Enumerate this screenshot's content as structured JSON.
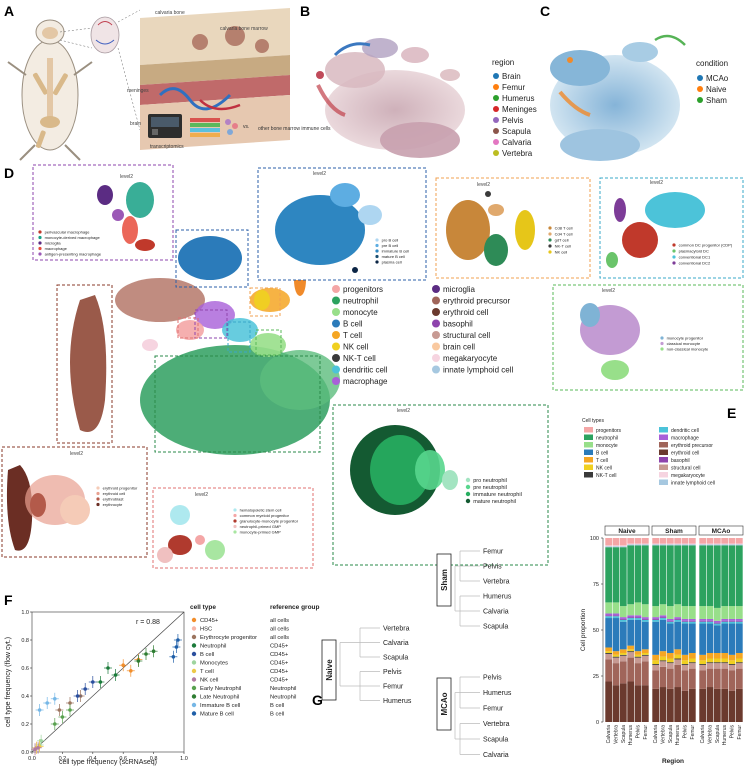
{
  "panels": {
    "A": {
      "letter": "A",
      "labels": {
        "calvaria_bone": "calvaria bone",
        "meninges": "meninges",
        "brain": "brain",
        "skull_marrow": "calvaria bone marrow",
        "transcriptomics": "transcriptomics",
        "vs": "vs.",
        "other": "other bone marrow immune cells"
      }
    },
    "B": {
      "letter": "B",
      "legend_title": "region",
      "legend": [
        {
          "name": "Brain",
          "color": "#1f77b4"
        },
        {
          "name": "Femur",
          "color": "#ff7f0e"
        },
        {
          "name": "Humerus",
          "color": "#2ca02c"
        },
        {
          "name": "Meninges",
          "color": "#d62728"
        },
        {
          "name": "Pelvis",
          "color": "#9467bd"
        },
        {
          "name": "Scapula",
          "color": "#8c564b"
        },
        {
          "name": "Calvaria",
          "color": "#e377c2"
        },
        {
          "name": "Vertebra",
          "color": "#bcbd22"
        }
      ]
    },
    "C": {
      "letter": "C",
      "legend_title": "condition",
      "legend": [
        {
          "name": "MCAo",
          "color": "#1f77b4"
        },
        {
          "name": "Naive",
          "color": "#ff7f0e"
        },
        {
          "name": "Sham",
          "color": "#2ca02c"
        }
      ]
    },
    "D": {
      "letter": "D",
      "main_legend_col1": [
        {
          "name": "progenitors",
          "color": "#f4a6a6"
        },
        {
          "name": "neutrophil",
          "color": "#2ca25f"
        },
        {
          "name": "monocyte",
          "color": "#98df8a"
        },
        {
          "name": "B cell",
          "color": "#2b7bba"
        },
        {
          "name": "T cell",
          "color": "#f5a623"
        },
        {
          "name": "NK cell",
          "color": "#f0d020"
        },
        {
          "name": "NK-T cell",
          "color": "#3a3a3a"
        },
        {
          "name": "dendritic cell",
          "color": "#4cc3d9"
        },
        {
          "name": "macrophage",
          "color": "#a85fd8"
        }
      ],
      "main_legend_col2": [
        {
          "name": "microglia",
          "color": "#5b2c83"
        },
        {
          "name": "erythroid precursor",
          "color": "#a0655a"
        },
        {
          "name": "erythroid cell",
          "color": "#6b3a2e"
        },
        {
          "name": "basophil",
          "color": "#8e44ad"
        },
        {
          "name": "structural cell",
          "color": "#c79a93"
        },
        {
          "name": "brain cell",
          "color": "#f9c9a0"
        },
        {
          "name": "megakaryocyte",
          "color": "#f6d4e0"
        },
        {
          "name": "innate lymphoid cell",
          "color": "#a6c8e0"
        }
      ],
      "insets": {
        "macrophage": {
          "title": "level2",
          "items": [
            {
              "name": "perivascular macrophage",
              "color": "#c0392b"
            },
            {
              "name": "monocyte-derived macrophage",
              "color": "#16a085"
            },
            {
              "name": "microglia",
              "color": "#5b2c83"
            },
            {
              "name": "macrophage",
              "color": "#e74c3c"
            },
            {
              "name": "antigen-presenting macrophage",
              "color": "#9b59b6"
            }
          ]
        },
        "bcell": {
          "title": "level2",
          "items": [
            {
              "name": "pro B cell",
              "color": "#aed6f1"
            },
            {
              "name": "pre B cell",
              "color": "#5dade2"
            },
            {
              "name": "immature B cell",
              "color": "#2e86c1"
            },
            {
              "name": "mature B cell",
              "color": "#1b4f72"
            },
            {
              "name": "plasma cell",
              "color": "#0b2545"
            }
          ]
        },
        "tcell": {
          "title": "level2",
          "items": [
            {
              "name": "Cd8 T cell",
              "color": "#c8873a"
            },
            {
              "name": "Cd4 T cell",
              "color": "#e0a96d"
            },
            {
              "name": "gdT cell",
              "color": "#2e8b57"
            },
            {
              "name": "NK-T cell",
              "color": "#3a3a3a"
            },
            {
              "name": "NK cell",
              "color": "#e6c619"
            }
          ]
        },
        "dc": {
          "title": "level2",
          "items": [
            {
              "name": "common DC progenitor (CDP)",
              "color": "#c0392b"
            },
            {
              "name": "plasmacytoid DC",
              "color": "#6ac46a"
            },
            {
              "name": "conventional DC1",
              "color": "#4cc3d9"
            },
            {
              "name": "conventional DC2",
              "color": "#7d3c98"
            }
          ]
        },
        "mono": {
          "title": "level2",
          "items": [
            {
              "name": "monocyte progenitor",
              "color": "#7fb3d5"
            },
            {
              "name": "classical monocyte",
              "color": "#c39bd3"
            },
            {
              "name": "non-classical monocyte",
              "color": "#98df8a"
            }
          ]
        },
        "ery": {
          "title": "level2",
          "items": [
            {
              "name": "erythroid progenitor",
              "color": "#f5cbb7"
            },
            {
              "name": "erythroid cell",
              "color": "#e8a090"
            },
            {
              "name": "erythroblast",
              "color": "#b35a4a"
            },
            {
              "name": "erythrocyte",
              "color": "#6b2e24"
            }
          ]
        },
        "prog": {
          "title": "level2",
          "items": [
            {
              "name": "hematopoietic stem cell",
              "color": "#aee9ef"
            },
            {
              "name": "common myeloid progenitor",
              "color": "#f4a6a6"
            },
            {
              "name": "granulocyte-monocyte progenitor",
              "color": "#b03a2e"
            },
            {
              "name": "neutrophil-primed GMP",
              "color": "#f0c0c0"
            },
            {
              "name": "monocyte-primed GMP",
              "color": "#a8e6a1"
            }
          ]
        },
        "neut": {
          "title": "level2",
          "items": [
            {
              "name": "pro neutrophil",
              "color": "#a3e4c1"
            },
            {
              "name": "pre neutrophil",
              "color": "#58d68d"
            },
            {
              "name": "immature neutrophil",
              "color": "#27ae60"
            },
            {
              "name": "mature neutrophil",
              "color": "#145a32"
            }
          ]
        }
      }
    },
    "E": {
      "letter": "E",
      "legend_title": "Cell types",
      "legend_col1": [
        {
          "name": "progenitors",
          "color": "#f4a6a6"
        },
        {
          "name": "neutrophil",
          "color": "#2ca25f"
        },
        {
          "name": "monocyte",
          "color": "#98df8a"
        },
        {
          "name": "B cell",
          "color": "#2b7bba"
        },
        {
          "name": "T cell",
          "color": "#f5a623"
        },
        {
          "name": "NK cell",
          "color": "#f0d020"
        },
        {
          "name": "NK-T cell",
          "color": "#3a3a3a"
        }
      ],
      "legend_col2": [
        {
          "name": "dendritic cell",
          "color": "#4cc3d9"
        },
        {
          "name": "macrophage",
          "color": "#a85fd8"
        },
        {
          "name": "erythroid precursor",
          "color": "#a0655a"
        },
        {
          "name": "erythroid cell",
          "color": "#6b3a2e"
        },
        {
          "name": "basophil",
          "color": "#8e44ad"
        },
        {
          "name": "structural cell",
          "color": "#c79a93"
        },
        {
          "name": "megakaryocyte",
          "color": "#f6d4e0"
        },
        {
          "name": "innate lymphoid cell",
          "color": "#a6c8e0"
        }
      ]
    },
    "F": {
      "letter": "F"
    },
    "G": {
      "letter": "G",
      "naive": {
        "label": "Naive",
        "leaves": [
          "Vertebra",
          "Calvaria",
          "Scapula",
          "Pelvis",
          "Femur",
          "Humerus"
        ]
      },
      "sham": {
        "label": "Sham",
        "leaves": [
          "Femur",
          "Pelvis",
          "Vertebra",
          "Humerus",
          "Calvaria",
          "Scapula"
        ]
      },
      "mcao": {
        "label": "MCAo",
        "leaves": [
          "Pelvis",
          "Humerus",
          "Femur",
          "Vertebra",
          "Scapula",
          "Calvaria"
        ]
      }
    }
  },
  "chart_data": [
    {
      "type": "bar",
      "id": "E",
      "stacked": true,
      "facets": [
        "Naive",
        "Sham",
        "MCAo"
      ],
      "categories": [
        "Calvaria",
        "Vertebra",
        "Scapula",
        "Humerus",
        "Pelvis",
        "Femur"
      ],
      "xlabel": "Region",
      "ylabel": "Cell proportion",
      "ylim": [
        0,
        100
      ],
      "yticks": [
        0,
        25,
        50,
        75,
        100
      ],
      "stack_order": [
        "erythroid cell",
        "erythroid precursor",
        "structural cell",
        "NK-T cell",
        "NK cell",
        "T cell",
        "B cell",
        "dendritic cell",
        "basophil",
        "macrophage",
        "monocyte",
        "neutrophil",
        "innate lymphoid cell",
        "megakaryocyte",
        "progenitors"
      ],
      "series": {
        "Naive": [
          [
            22,
            12,
            3,
            0.5,
            1,
            2,
            16,
            1,
            0.5,
            1,
            6,
            30,
            0.5,
            0.5,
            4
          ],
          [
            20,
            12,
            3,
            0.5,
            1,
            2,
            18,
            1,
            0.5,
            1,
            6,
            30,
            0.5,
            0.5,
            4
          ],
          [
            21,
            12,
            3,
            0.5,
            1,
            2,
            15,
            1,
            0.5,
            1,
            6,
            32,
            0.5,
            0.5,
            4
          ],
          [
            22,
            13,
            3,
            0.5,
            1,
            2,
            14,
            1,
            0.5,
            1,
            6,
            32,
            0.5,
            0.5,
            3
          ],
          [
            20,
            12,
            3,
            0.5,
            1,
            2,
            17,
            1,
            0.5,
            1,
            7,
            31,
            0.5,
            0.5,
            3
          ],
          [
            20,
            13,
            3,
            0.5,
            1,
            2,
            15,
            1,
            0.5,
            1,
            7,
            32,
            0.5,
            0.5,
            3
          ]
        ],
        "Sham": [
          [
            18,
            10,
            3,
            0.5,
            2,
            3,
            18,
            1,
            0.5,
            1,
            6,
            33,
            0.5,
            0.5,
            3
          ],
          [
            19,
            11,
            3,
            0.5,
            2,
            3,
            17,
            1,
            0.5,
            1,
            6,
            32,
            0.5,
            0.5,
            3
          ],
          [
            18,
            11,
            3,
            0.5,
            2,
            3,
            16,
            1,
            0.5,
            1,
            7,
            33,
            0.5,
            0.5,
            3
          ],
          [
            19,
            12,
            3,
            0.5,
            2,
            3,
            15,
            1,
            0.5,
            1,
            7,
            32,
            0.5,
            0.5,
            3
          ],
          [
            17,
            11,
            3,
            0.5,
            2,
            3,
            17,
            1,
            0.5,
            1,
            7,
            33,
            0.5,
            0.5,
            3
          ],
          [
            18,
            11,
            3,
            0.5,
            2,
            3,
            16,
            1,
            0.5,
            1,
            7,
            33,
            0.5,
            0.5,
            3
          ]
        ],
        "MCAo": [
          [
            18,
            10,
            3,
            0.5,
            2,
            3,
            17,
            1,
            0.5,
            1,
            7,
            33,
            0.5,
            0.5,
            3
          ],
          [
            19,
            10,
            3,
            0.5,
            2,
            3,
            16,
            1,
            0.5,
            1,
            7,
            33,
            0.5,
            0.5,
            3
          ],
          [
            18,
            11,
            3,
            0.5,
            2,
            3,
            15,
            1,
            0.5,
            1,
            7,
            34,
            0.5,
            0.5,
            3
          ],
          [
            18,
            11,
            3,
            0.5,
            2,
            3,
            16,
            1,
            0.5,
            1,
            7,
            33,
            0.5,
            0.5,
            3
          ],
          [
            17,
            11,
            3,
            0.5,
            2,
            3,
            17,
            1,
            0.5,
            1,
            7,
            33,
            0.5,
            0.5,
            3
          ],
          [
            18,
            11,
            3,
            0.5,
            2,
            3,
            16,
            1,
            0.5,
            1,
            7,
            33,
            0.5,
            0.5,
            3
          ]
        ]
      }
    },
    {
      "type": "scatter",
      "id": "F",
      "xlabel": "cell type frequency (scRNAseq)",
      "ylabel": "cell type frequency (flow cyt.)",
      "xlim": [
        0,
        1
      ],
      "ylim": [
        0,
        1
      ],
      "xticks": [
        0.0,
        0.2,
        0.4,
        0.6,
        0.8,
        1.0
      ],
      "yticks": [
        0.0,
        0.2,
        0.4,
        0.6,
        0.8,
        1.0
      ],
      "annotation": "r = 0.88",
      "legend_header_type": "cell type",
      "legend_header_ref": "reference group",
      "series": [
        {
          "name": "CD45+",
          "ref": "all cells",
          "color": "#f28e2b",
          "points": [
            [
              0.6,
              0.62
            ],
            [
              0.65,
              0.58
            ],
            [
              0.7,
              0.66
            ]
          ]
        },
        {
          "name": "HSC",
          "ref": "all cells",
          "color": "#f7b6a8",
          "points": [
            [
              0.02,
              0.02
            ],
            [
              0.03,
              0.03
            ]
          ]
        },
        {
          "name": "Erythrocyte progenitor",
          "ref": "all cells",
          "color": "#9c755f",
          "points": [
            [
              0.18,
              0.3
            ],
            [
              0.25,
              0.35
            ],
            [
              0.32,
              0.4
            ]
          ]
        },
        {
          "name": "Neutrophil",
          "ref": "CD45+",
          "color": "#1b7a3a",
          "points": [
            [
              0.45,
              0.5
            ],
            [
              0.55,
              0.55
            ],
            [
              0.5,
              0.6
            ]
          ]
        },
        {
          "name": "B cell",
          "ref": "CD45+",
          "color": "#2b4f9e",
          "points": [
            [
              0.3,
              0.4
            ],
            [
              0.35,
              0.45
            ],
            [
              0.4,
              0.5
            ]
          ]
        },
        {
          "name": "Monocytes",
          "ref": "CD45+",
          "color": "#9ed49e",
          "points": [
            [
              0.05,
              0.05
            ],
            [
              0.06,
              0.08
            ]
          ]
        },
        {
          "name": "T cell",
          "ref": "CD45+",
          "color": "#edc948",
          "points": [
            [
              0.03,
              0.03
            ],
            [
              0.05,
              0.04
            ]
          ]
        },
        {
          "name": "NK cell",
          "ref": "CD45+",
          "color": "#b07aa1",
          "points": [
            [
              0.02,
              0.02
            ],
            [
              0.04,
              0.03
            ]
          ]
        },
        {
          "name": "Early Neutrophil",
          "ref": "Neutrophil",
          "color": "#59a14f",
          "points": [
            [
              0.15,
              0.2
            ],
            [
              0.2,
              0.25
            ],
            [
              0.25,
              0.3
            ]
          ]
        },
        {
          "name": "Late Neutrophil",
          "ref": "Neutrophil",
          "color": "#2e7d32",
          "points": [
            [
              0.75,
              0.7
            ],
            [
              0.8,
              0.72
            ],
            [
              0.7,
              0.65
            ]
          ]
        },
        {
          "name": "Immature B cell",
          "ref": "B cell",
          "color": "#76b7e6",
          "points": [
            [
              0.05,
              0.3
            ],
            [
              0.1,
              0.35
            ],
            [
              0.15,
              0.38
            ]
          ]
        },
        {
          "name": "Mature B cell",
          "ref": "B cell",
          "color": "#1f5fa8",
          "points": [
            [
              0.95,
              0.75
            ],
            [
              0.93,
              0.68
            ],
            [
              0.96,
              0.8
            ]
          ]
        }
      ]
    }
  ]
}
